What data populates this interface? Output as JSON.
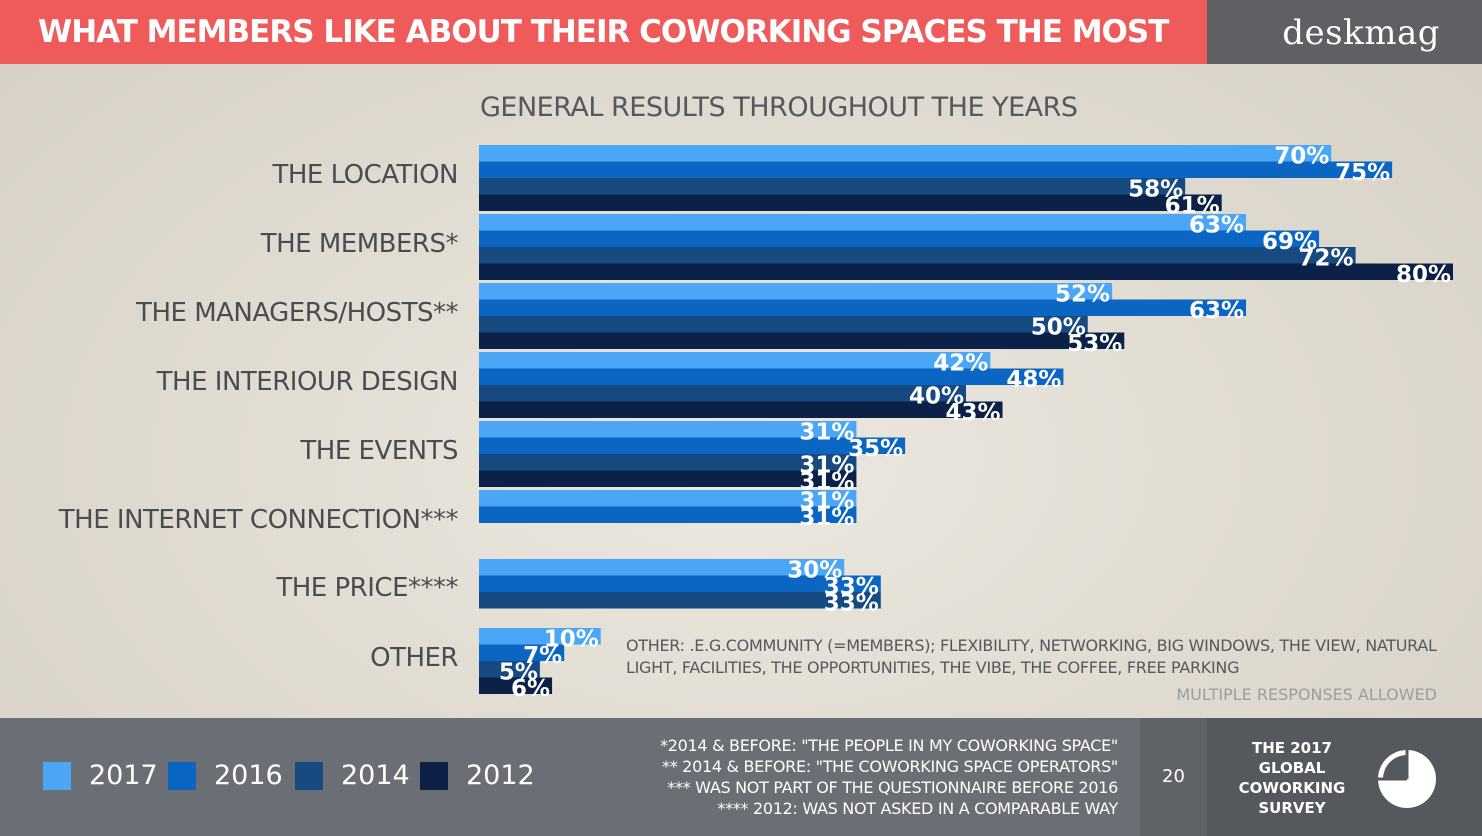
{
  "header": {
    "title": "WHAT MEMBERS LIKE ABOUT THEIR COWORKING SPACES THE MOST",
    "brand": "deskmag",
    "colors": {
      "title_band": "#ef5a5a",
      "brand_box": "#5f6063"
    }
  },
  "chart_data": {
    "type": "bar",
    "orientation": "horizontal",
    "title": "GENERAL RESULTS THROUGHOUT THE YEARS",
    "xlabel": "",
    "ylabel": "",
    "xlim": [
      0,
      80
    ],
    "grid": false,
    "legend_position": "bottom-left",
    "categories": [
      "THE LOCATION",
      "THE MEMBERS*",
      "THE MANAGERS/HOSTS**",
      "THE INTERIOUR DESIGN",
      "THE EVENTS",
      "THE INTERNET CONNECTION***",
      "THE PRICE****",
      "OTHER"
    ],
    "series": [
      {
        "name": "2017",
        "color": "#4ba7f5",
        "values": [
          70,
          63,
          52,
          42,
          31,
          31,
          30,
          10
        ]
      },
      {
        "name": "2016",
        "color": "#0b66c3",
        "values": [
          75,
          69,
          63,
          48,
          35,
          31,
          33,
          7
        ]
      },
      {
        "name": "2014",
        "color": "#164a80",
        "values": [
          58,
          72,
          50,
          40,
          31,
          null,
          33,
          5
        ]
      },
      {
        "name": "2012",
        "color": "#0b2148",
        "values": [
          61,
          80,
          53,
          43,
          31,
          null,
          null,
          6
        ]
      }
    ],
    "data_labels": [
      [
        "70%",
        "75%",
        "58%",
        "61%"
      ],
      [
        "63%",
        "69%",
        "72%",
        "80%"
      ],
      [
        "52%",
        "63%",
        "50%",
        "53%"
      ],
      [
        "42%",
        "48%",
        "40%",
        "43%"
      ],
      [
        "31%",
        "35%",
        "31%",
        "31%"
      ],
      [
        "31%",
        "31%",
        null,
        null
      ],
      [
        "30%",
        "33%",
        "33%",
        null
      ],
      [
        "10%",
        "7%",
        "5%",
        "6%"
      ]
    ]
  },
  "notes": {
    "other": "OTHER: .E.G.COMMUNITY (=MEMBERS); FLEXIBILITY, NETWORKING, BIG WINDOWS, THE VIEW, NATURAL LIGHT, FACILITIES, THE OPPORTUNITIES, THE VIBE, THE COFFEE, FREE PARKING",
    "multiple": "MULTIPLE RESPONSES ALLOWED"
  },
  "footer": {
    "footnotes": [
      "*2014 & BEFORE: \"THE PEOPLE IN MY COWORKING SPACE\"",
      "** 2014 & BEFORE: \"THE COWORKING SPACE OPERATORS\"",
      "*** WAS NOT PART OF THE QUESTIONNAIRE BEFORE 2016",
      "**** 2012: WAS NOT ASKED IN A COMPARABLE WAY"
    ],
    "page_number": "20",
    "survey_title": [
      "THE 2017",
      "GLOBAL",
      "COWORKING",
      "SURVEY"
    ],
    "survey_icon": "pie-chart-icon",
    "colors": {
      "footer": "#6b6e74",
      "survey_box": "#55585d"
    }
  }
}
